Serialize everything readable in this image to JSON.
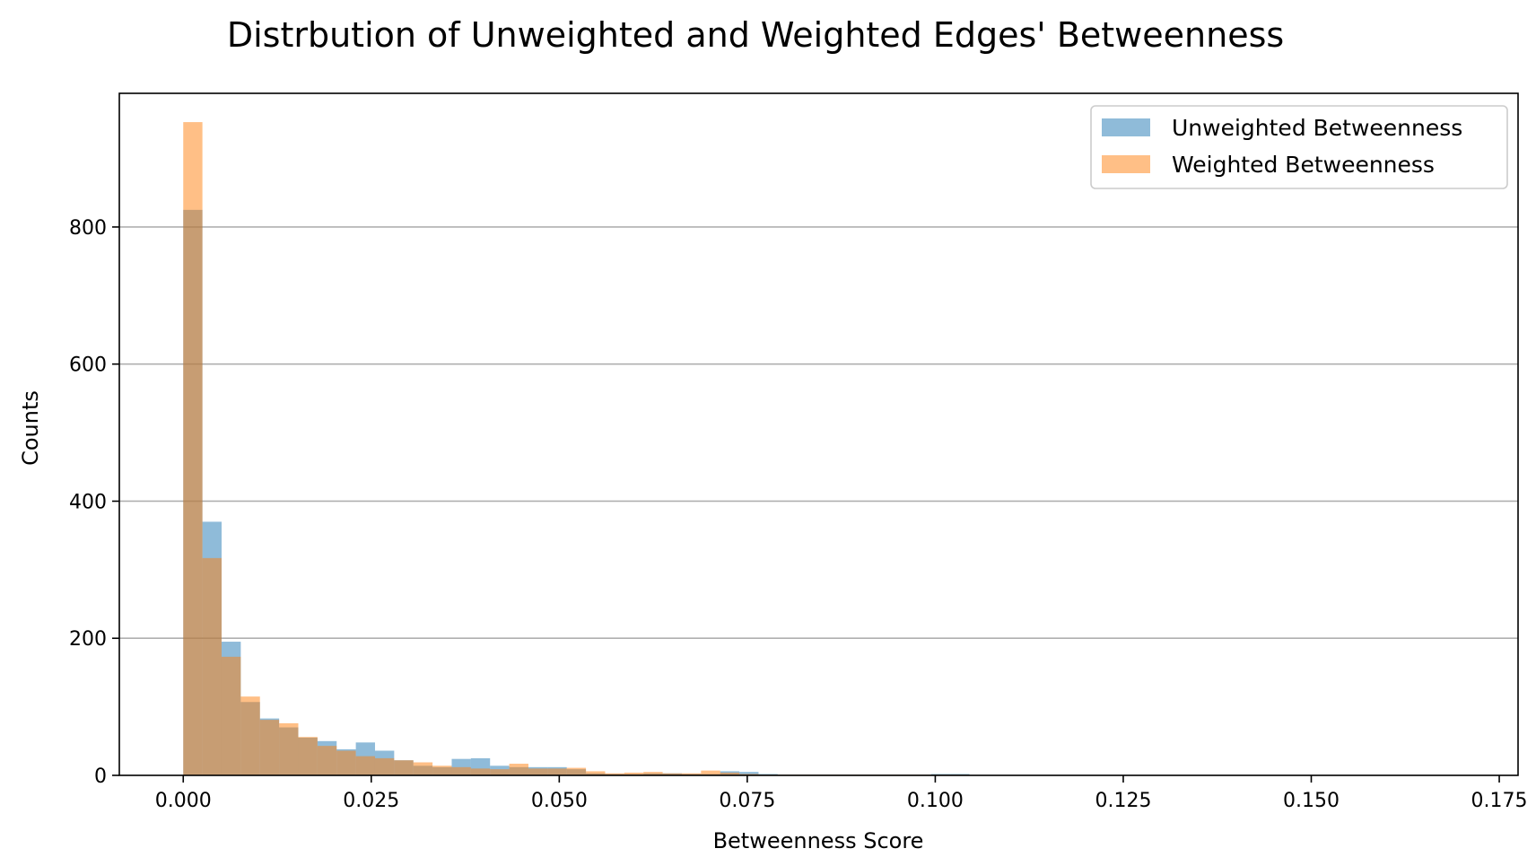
{
  "chart_data": {
    "type": "histogram",
    "title": "Distrbution of Unweighted and Weighted Edges' Betweenness",
    "xlabel": "Betweenness Score",
    "ylabel": "Counts",
    "xlim": [
      -0.0085,
      0.1775
    ],
    "ylim": [
      0,
      995
    ],
    "xticks": [
      0.0,
      0.025,
      0.05,
      0.075,
      0.1,
      0.125,
      0.15,
      0.175
    ],
    "xtick_labels": [
      "0.000",
      "0.025",
      "0.050",
      "0.075",
      "0.100",
      "0.125",
      "0.150",
      "0.175"
    ],
    "yticks": [
      0,
      200,
      400,
      600,
      800
    ],
    "ytick_labels": [
      "0",
      "200",
      "400",
      "600",
      "800"
    ],
    "grid": "y",
    "legend_position": "top-right",
    "bin_width": 0.00255,
    "bin_start": 0.0,
    "series": [
      {
        "name": "Unweighted Betweenness",
        "color": "#1f77b4",
        "alpha": 0.5,
        "values": [
          825,
          370,
          195,
          107,
          83,
          70,
          55,
          50,
          38,
          48,
          36,
          22,
          14,
          12,
          24,
          25,
          14,
          12,
          12,
          12,
          9,
          3,
          2,
          2,
          3,
          3,
          2,
          2,
          6,
          5,
          2,
          1,
          1,
          1,
          1,
          1,
          1,
          1,
          1,
          2,
          2
        ]
      },
      {
        "name": "Weighted Betweenness",
        "color": "#ff7f0e",
        "alpha": 0.5,
        "values": [
          953,
          317,
          173,
          115,
          81,
          76,
          56,
          43,
          36,
          28,
          25,
          22,
          19,
          14,
          12,
          10,
          9,
          17,
          10,
          10,
          11,
          6,
          3,
          4,
          5,
          3,
          3,
          7,
          4,
          2,
          1,
          1,
          1,
          1,
          1,
          1,
          1,
          1,
          1,
          1,
          1
        ]
      }
    ]
  }
}
